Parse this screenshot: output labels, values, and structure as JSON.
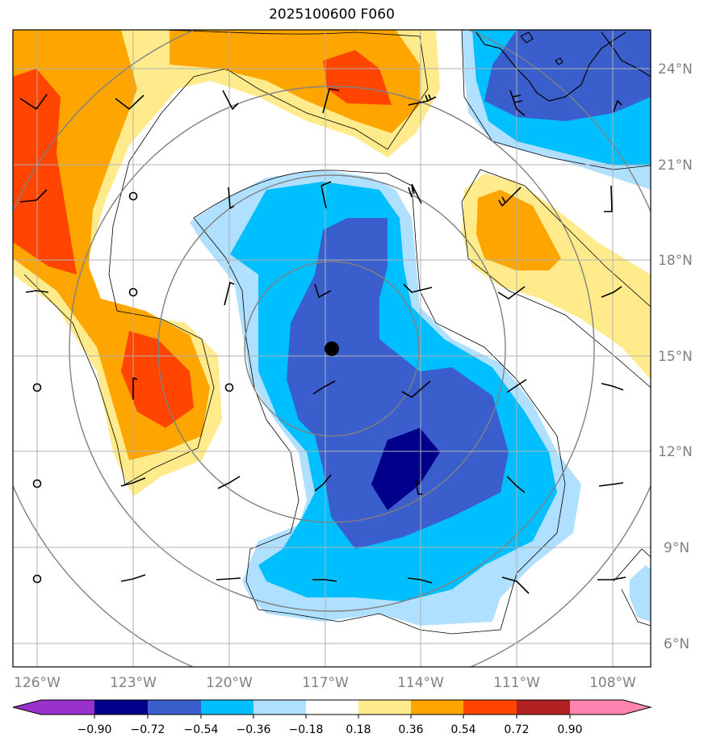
{
  "title": "2025100600 F060",
  "colors": {
    "n090": "#9932cc",
    "n072": "#00008b",
    "n054": "#3a5fcd",
    "n036": "#00bfff",
    "n018": "#b0e0ff",
    "zero": "#ffffff",
    "p018": "#ffeb8c",
    "p036": "#ffa500",
    "p054": "#ff4500",
    "p072": "#b22222",
    "p090": "#ff85b0"
  },
  "map": {
    "lon_labels": [
      "126°W",
      "123°W",
      "120°W",
      "117°W",
      "114°W",
      "111°W",
      "108°W"
    ],
    "lat_labels": [
      "24°N",
      "21°N",
      "18°N",
      "15°N",
      "12°N",
      "9°N",
      "6°N"
    ],
    "center_marker": "storm-center"
  },
  "colorbar": {
    "labels": [
      "−0.90",
      "−0.72",
      "−0.54",
      "−0.36",
      "−0.18",
      "0.18",
      "0.36",
      "0.54",
      "0.72",
      "0.90"
    ]
  }
}
